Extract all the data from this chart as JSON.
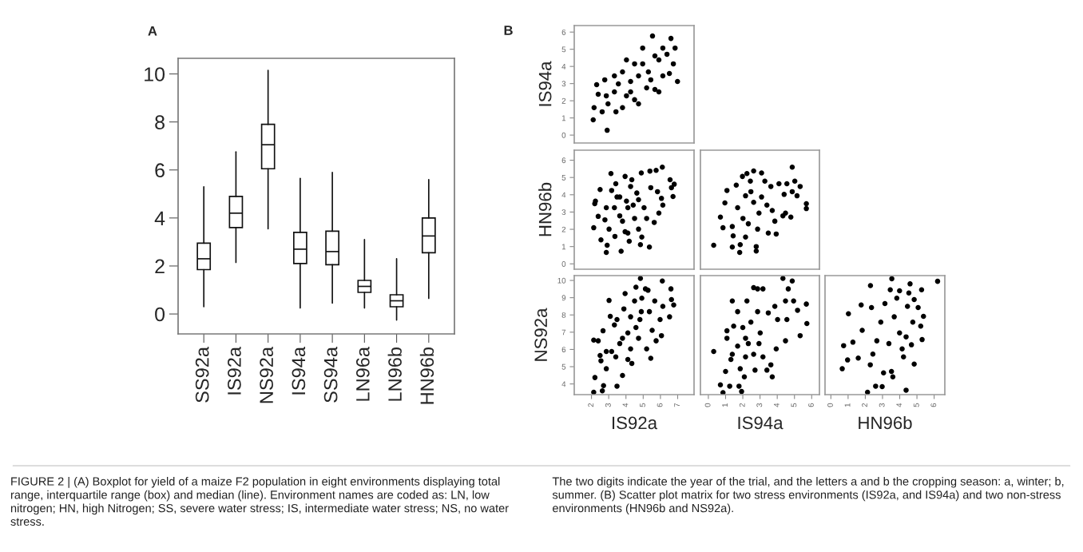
{
  "chart_data": [
    {
      "type": "box",
      "title": "A",
      "categories": [
        "SS92a",
        "IS92a",
        "NS92a",
        "IS94a",
        "SS94a",
        "LN96a",
        "LN96b",
        "HN96b"
      ],
      "boxes": [
        {
          "low": 0.3,
          "q1": 1.85,
          "median": 2.3,
          "q3": 2.95,
          "high": 5.3
        },
        {
          "low": 2.15,
          "q1": 3.6,
          "median": 4.2,
          "q3": 4.9,
          "high": 6.75
        },
        {
          "low": 3.55,
          "q1": 6.05,
          "median": 7.05,
          "q3": 7.9,
          "high": 10.15
        },
        {
          "low": 0.25,
          "q1": 2.1,
          "median": 2.7,
          "q3": 3.4,
          "high": 5.65
        },
        {
          "low": 0.45,
          "q1": 2.05,
          "median": 2.6,
          "q3": 3.45,
          "high": 5.9
        },
        {
          "low": 0.25,
          "q1": 0.9,
          "median": 1.15,
          "q3": 1.4,
          "high": 3.1
        },
        {
          "low": -0.25,
          "q1": 0.3,
          "median": 0.55,
          "q3": 0.8,
          "high": 2.3
        },
        {
          "low": 0.65,
          "q1": 2.55,
          "median": 3.25,
          "q3": 4.0,
          "high": 5.6
        }
      ],
      "ylim": [
        -0.83,
        10.65
      ],
      "yticks": [
        0,
        2,
        4,
        6,
        8,
        10
      ],
      "annotations": [
        "FIGURE 2 | (A) Boxplot for yield of a maize F2 population in eight environments displaying total range, interquartile range (box) and median (line). Environment names are coded as: LN, low nitrogen; HN, high Nitrogen; SS, severe water stress; IS, intermediate water stress; NS, no water stress.",
        "The two digits indicate the year of the trial, and the letters a and b the cropping season: a, winter; b, summer. (B) Scatter plot matrix for two stress environments (IS92a, and IS94a) and two non-stress environments (HN96b and NS92a)."
      ]
    },
    {
      "type": "scatter",
      "title": "B",
      "ylabel": "IS94a",
      "color": "#000000",
      "marker": "circle",
      "tick_labels": "y",
      "xlim": [
        1.0,
        7.95
      ],
      "xticks": [
        2,
        3,
        4,
        5,
        6,
        7
      ],
      "ylim": [
        -0.46,
        6.38
      ],
      "yticks": [
        0,
        1,
        2,
        3,
        4,
        5,
        6
      ],
      "x": [
        2.1,
        2.15,
        2.39,
        2.3,
        2.77,
        2.96,
        2.91,
        3.33,
        3.42,
        3.8,
        4.03,
        4.27,
        4.5,
        4.73,
        4.97,
        5.3,
        5.54,
        5.68,
        5.91,
        6.14,
        6.38,
        6.61,
        6.85,
        6.75,
        6.52,
        6.99,
        3.56,
        4.27,
        4.73,
        5.2,
        4.97,
        4.5,
        3.8,
        2.86,
        5.44,
        5.91,
        3.33,
        4.03,
        5.68,
        6.14,
        2.62
      ],
      "values": [
        0.89,
        1.6,
        2.38,
        2.94,
        3.22,
        1.82,
        0.28,
        2.52,
        1.36,
        3.68,
        2.29,
        3.12,
        4.15,
        1.82,
        5.07,
        3.68,
        5.77,
        2.66,
        4.38,
        3.45,
        4.71,
        5.63,
        5.07,
        4.15,
        3.59,
        3.12,
        2.98,
        2.52,
        3.45,
        2.75,
        4.15,
        2.06,
        1.6,
        2.29,
        3.22,
        2.52,
        3.45,
        4.38,
        4.61,
        5.07,
        1.36
      ]
    },
    {
      "type": "scatter",
      "ylabel": "HN96b",
      "color": "#000000",
      "marker": "circle",
      "tick_labels": "y",
      "xlim": [
        1.0,
        7.95
      ],
      "xticks": [
        2,
        3,
        4,
        5,
        6,
        7
      ],
      "ylim": [
        -0.31,
        6.58
      ],
      "yticks": [
        0,
        1,
        2,
        3,
        4,
        5,
        6
      ],
      "x": [
        2.13,
        2.19,
        2.23,
        2.39,
        2.5,
        2.78,
        2.86,
        2.91,
        3.13,
        3.17,
        3.33,
        3.36,
        3.41,
        3.72,
        3.8,
        3.95,
        4.03,
        4.11,
        4.19,
        4.27,
        4.34,
        4.5,
        4.63,
        4.84,
        4.89,
        4.92,
        5.05,
        5.36,
        5.39,
        5.44,
        5.64,
        5.75,
        5.83,
        5.91,
        6.06,
        6.11,
        6.14,
        6.56,
        6.64,
        6.73,
        6.8,
        2.55,
        3.02,
        3.64,
        3.95,
        4.42,
        4.73,
        5.2,
        3.64,
        2.86,
        3.48,
        4.11,
        4.73
      ],
      "values": [
        2.09,
        3.48,
        3.63,
        2.75,
        4.3,
        2.55,
        0.66,
        1.08,
        5.23,
        4.25,
        3.25,
        1.59,
        4.64,
        0.73,
        2.47,
        5.06,
        3.63,
        1.78,
        1.31,
        4.48,
        4.87,
        2.63,
        4.1,
        1.11,
        5.26,
        1.55,
        3.25,
        0.97,
        5.37,
        4.41,
        2.4,
        5.41,
        4.18,
        2.94,
        3.79,
        5.6,
        3.4,
        4.87,
        4.41,
        3.9,
        4.61,
        1.39,
        2.01,
        2.78,
        1.86,
        3.4,
        2.01,
        2.63,
        3.87,
        3.25,
        3.87,
        3.25,
        3.71
      ]
    },
    {
      "type": "scatter",
      "color": "#000000",
      "marker": "circle",
      "tick_labels": false,
      "xlim": [
        -0.46,
        6.45
      ],
      "xticks": [
        0,
        1,
        2,
        3,
        4,
        5,
        6
      ],
      "ylim": [
        -0.31,
        6.58
      ],
      "yticks": [
        0,
        1,
        2,
        3,
        4,
        5,
        6
      ],
      "x": [
        0.31,
        0.7,
        0.85,
        0.96,
        1.08,
        1.39,
        1.44,
        1.62,
        1.82,
        1.85,
        1.98,
        2.16,
        2.24,
        2.32,
        2.44,
        2.63,
        2.78,
        2.78,
        2.86,
        3.09,
        3.28,
        3.4,
        3.48,
        3.63,
        3.71,
        3.86,
        3.94,
        4.1,
        4.33,
        4.4,
        4.48,
        4.56,
        4.79,
        4.87,
        4.87,
        5.02,
        5.15,
        5.33,
        5.69,
        5.69,
        1.7,
        2.01,
        2.16,
        2.63,
        2.94,
        3.09,
        2.47,
        1.39
      ],
      "values": [
        1.08,
        2.71,
        2.09,
        3.53,
        4.25,
        0.97,
        1.62,
        4.56,
        0.66,
        1.11,
        5.06,
        3.94,
        5.23,
        2.32,
        4.79,
        5.38,
        1.0,
        0.74,
        2.01,
        5.26,
        4.79,
        3.4,
        1.78,
        4.48,
        3.09,
        2.47,
        1.73,
        4.64,
        2.78,
        4.02,
        2.94,
        4.64,
        2.71,
        4.18,
        5.6,
        4.79,
        3.94,
        4.48,
        3.48,
        3.2,
        3.25,
        2.63,
        1.55,
        3.56,
        2.94,
        3.87,
        4.18,
        2.16
      ]
    },
    {
      "type": "scatter",
      "ylabel": "NS92a",
      "xlabel": "IS92a",
      "color": "#000000",
      "marker": "circle",
      "xlim": [
        1.0,
        7.95
      ],
      "xticks": [
        2,
        3,
        4,
        5,
        6,
        7
      ],
      "ylim": [
        3.38,
        10.28
      ],
      "yticks": [
        4,
        5,
        6,
        7,
        8,
        9,
        10
      ],
      "x": [
        2.13,
        2.2,
        2.13,
        2.39,
        2.5,
        2.55,
        2.67,
        2.7,
        2.63,
        2.86,
        3.02,
        3.17,
        3.48,
        3.09,
        3.33,
        3.64,
        3.8,
        3.95,
        3.88,
        4.11,
        4.11,
        4.34,
        4.27,
        4.5,
        4.58,
        4.84,
        4.92,
        4.81,
        4.73,
        5.13,
        5.28,
        5.36,
        5.44,
        5.2,
        5.52,
        5.67,
        5.75,
        6.06,
        6.11,
        6.14,
        5.98,
        6.61,
        6.64,
        6.77,
        6.53,
        3.48,
        3.8,
        4.27,
        4.58,
        4.89,
        2.86,
        3.41
      ],
      "values": [
        3.52,
        4.37,
        6.54,
        6.5,
        5.65,
        5.34,
        7.08,
        3.9,
        3.6,
        4.88,
        8.84,
        5.88,
        3.87,
        7.92,
        7.42,
        6.34,
        4.49,
        9.24,
        8.35,
        6.96,
        5.42,
        5.19,
        7.89,
        8.81,
        9.61,
        10.12,
        8.97,
        7.73,
        6.65,
        9.51,
        9.43,
        8.19,
        5.49,
        6.03,
        7.11,
        8.81,
        6.5,
        6.8,
        9.97,
        8.5,
        7.73,
        9.51,
        8.89,
        8.58,
        7.89,
        7.73,
        6.65,
        6.03,
        7.27,
        8.19,
        5.88,
        5.57
      ]
    },
    {
      "type": "scatter",
      "xlabel": "IS94a",
      "color": "#000000",
      "marker": "circle",
      "tick_labels": "x",
      "xlim": [
        -0.46,
        6.45
      ],
      "xticks": [
        0,
        1,
        2,
        3,
        4,
        5,
        6
      ],
      "ylim": [
        3.38,
        10.28
      ],
      "yticks": [
        4,
        5,
        6,
        7,
        8,
        9,
        10
      ],
      "x": [
        0.31,
        0.7,
        0.85,
        1.24,
        1.0,
        1.08,
        1.08,
        1.31,
        1.39,
        1.47,
        1.7,
        1.7,
        1.78,
        1.93,
        2.09,
        1.85,
        2.16,
        2.24,
        2.47,
        2.63,
        2.86,
        3.17,
        2.71,
        2.63,
        2.86,
        3.01,
        3.17,
        3.4,
        3.48,
        3.71,
        3.63,
        3.86,
        3.94,
        4.02,
        4.33,
        4.48,
        4.48,
        4.64,
        4.56,
        4.87,
        4.95,
        5.18,
        5.33,
        5.69,
        5.72,
        2.32,
        2.0,
        2.94,
        1.39,
        2.16
      ],
      "values": [
        5.88,
        3.95,
        3.49,
        3.87,
        4.72,
        7.08,
        6.65,
        5.42,
        8.81,
        7.35,
        8.19,
        6.19,
        3.87,
        3.56,
        4.41,
        4.88,
        6.65,
        8.81,
        7.58,
        9.58,
        9.51,
        9.51,
        4.8,
        5.72,
        8.19,
        6.96,
        5.57,
        4.8,
        8.12,
        4.41,
        5.11,
        8.5,
        6.03,
        7.73,
        10.12,
        6.5,
        8.81,
        9.51,
        7.73,
        9.97,
        8.81,
        8.27,
        6.8,
        8.63,
        7.5,
        6.34,
        7.27,
        6.34,
        5.72,
        5.57
      ]
    },
    {
      "type": "scatter",
      "xlabel": "HN96b",
      "color": "#000000",
      "marker": "circle",
      "tick_labels": "x",
      "xlim": [
        -0.34,
        6.62
      ],
      "xticks": [
        0,
        1,
        2,
        3,
        4,
        5,
        6
      ],
      "ylim": [
        3.38,
        10.28
      ],
      "yticks": [
        4,
        5,
        6,
        7,
        8,
        9,
        10
      ],
      "x": [
        0.66,
        0.74,
        0.97,
        1.02,
        1.28,
        1.59,
        1.76,
        1.82,
        2.13,
        2.29,
        2.36,
        2.44,
        2.6,
        2.67,
        2.9,
        2.98,
        3.06,
        3.14,
        3.37,
        3.45,
        3.52,
        3.6,
        3.68,
        3.83,
        3.99,
        3.99,
        4.14,
        4.22,
        4.37,
        4.37,
        4.45,
        4.53,
        4.68,
        4.76,
        4.84,
        4.84,
        5.07,
        5.22,
        5.3,
        5.27,
        5.38,
        3.54,
        6.2,
        2.3,
        4.6
      ],
      "values": [
        4.88,
        6.22,
        5.39,
        8.07,
        6.42,
        5.5,
        8.58,
        7.11,
        3.52,
        5.11,
        8.43,
        5.73,
        3.87,
        6.5,
        7.58,
        3.84,
        4.64,
        8.66,
        6.34,
        9.46,
        4.72,
        4.41,
        7.89,
        8.97,
        9.4,
        6.96,
        6.03,
        5.57,
        3.64,
        6.73,
        8.5,
        9.27,
        6.27,
        7.58,
        5.15,
        8.89,
        8.43,
        7.35,
        6.57,
        9.46,
        7.92,
        10.1,
        9.95,
        9.7,
        9.8
      ]
    }
  ]
}
